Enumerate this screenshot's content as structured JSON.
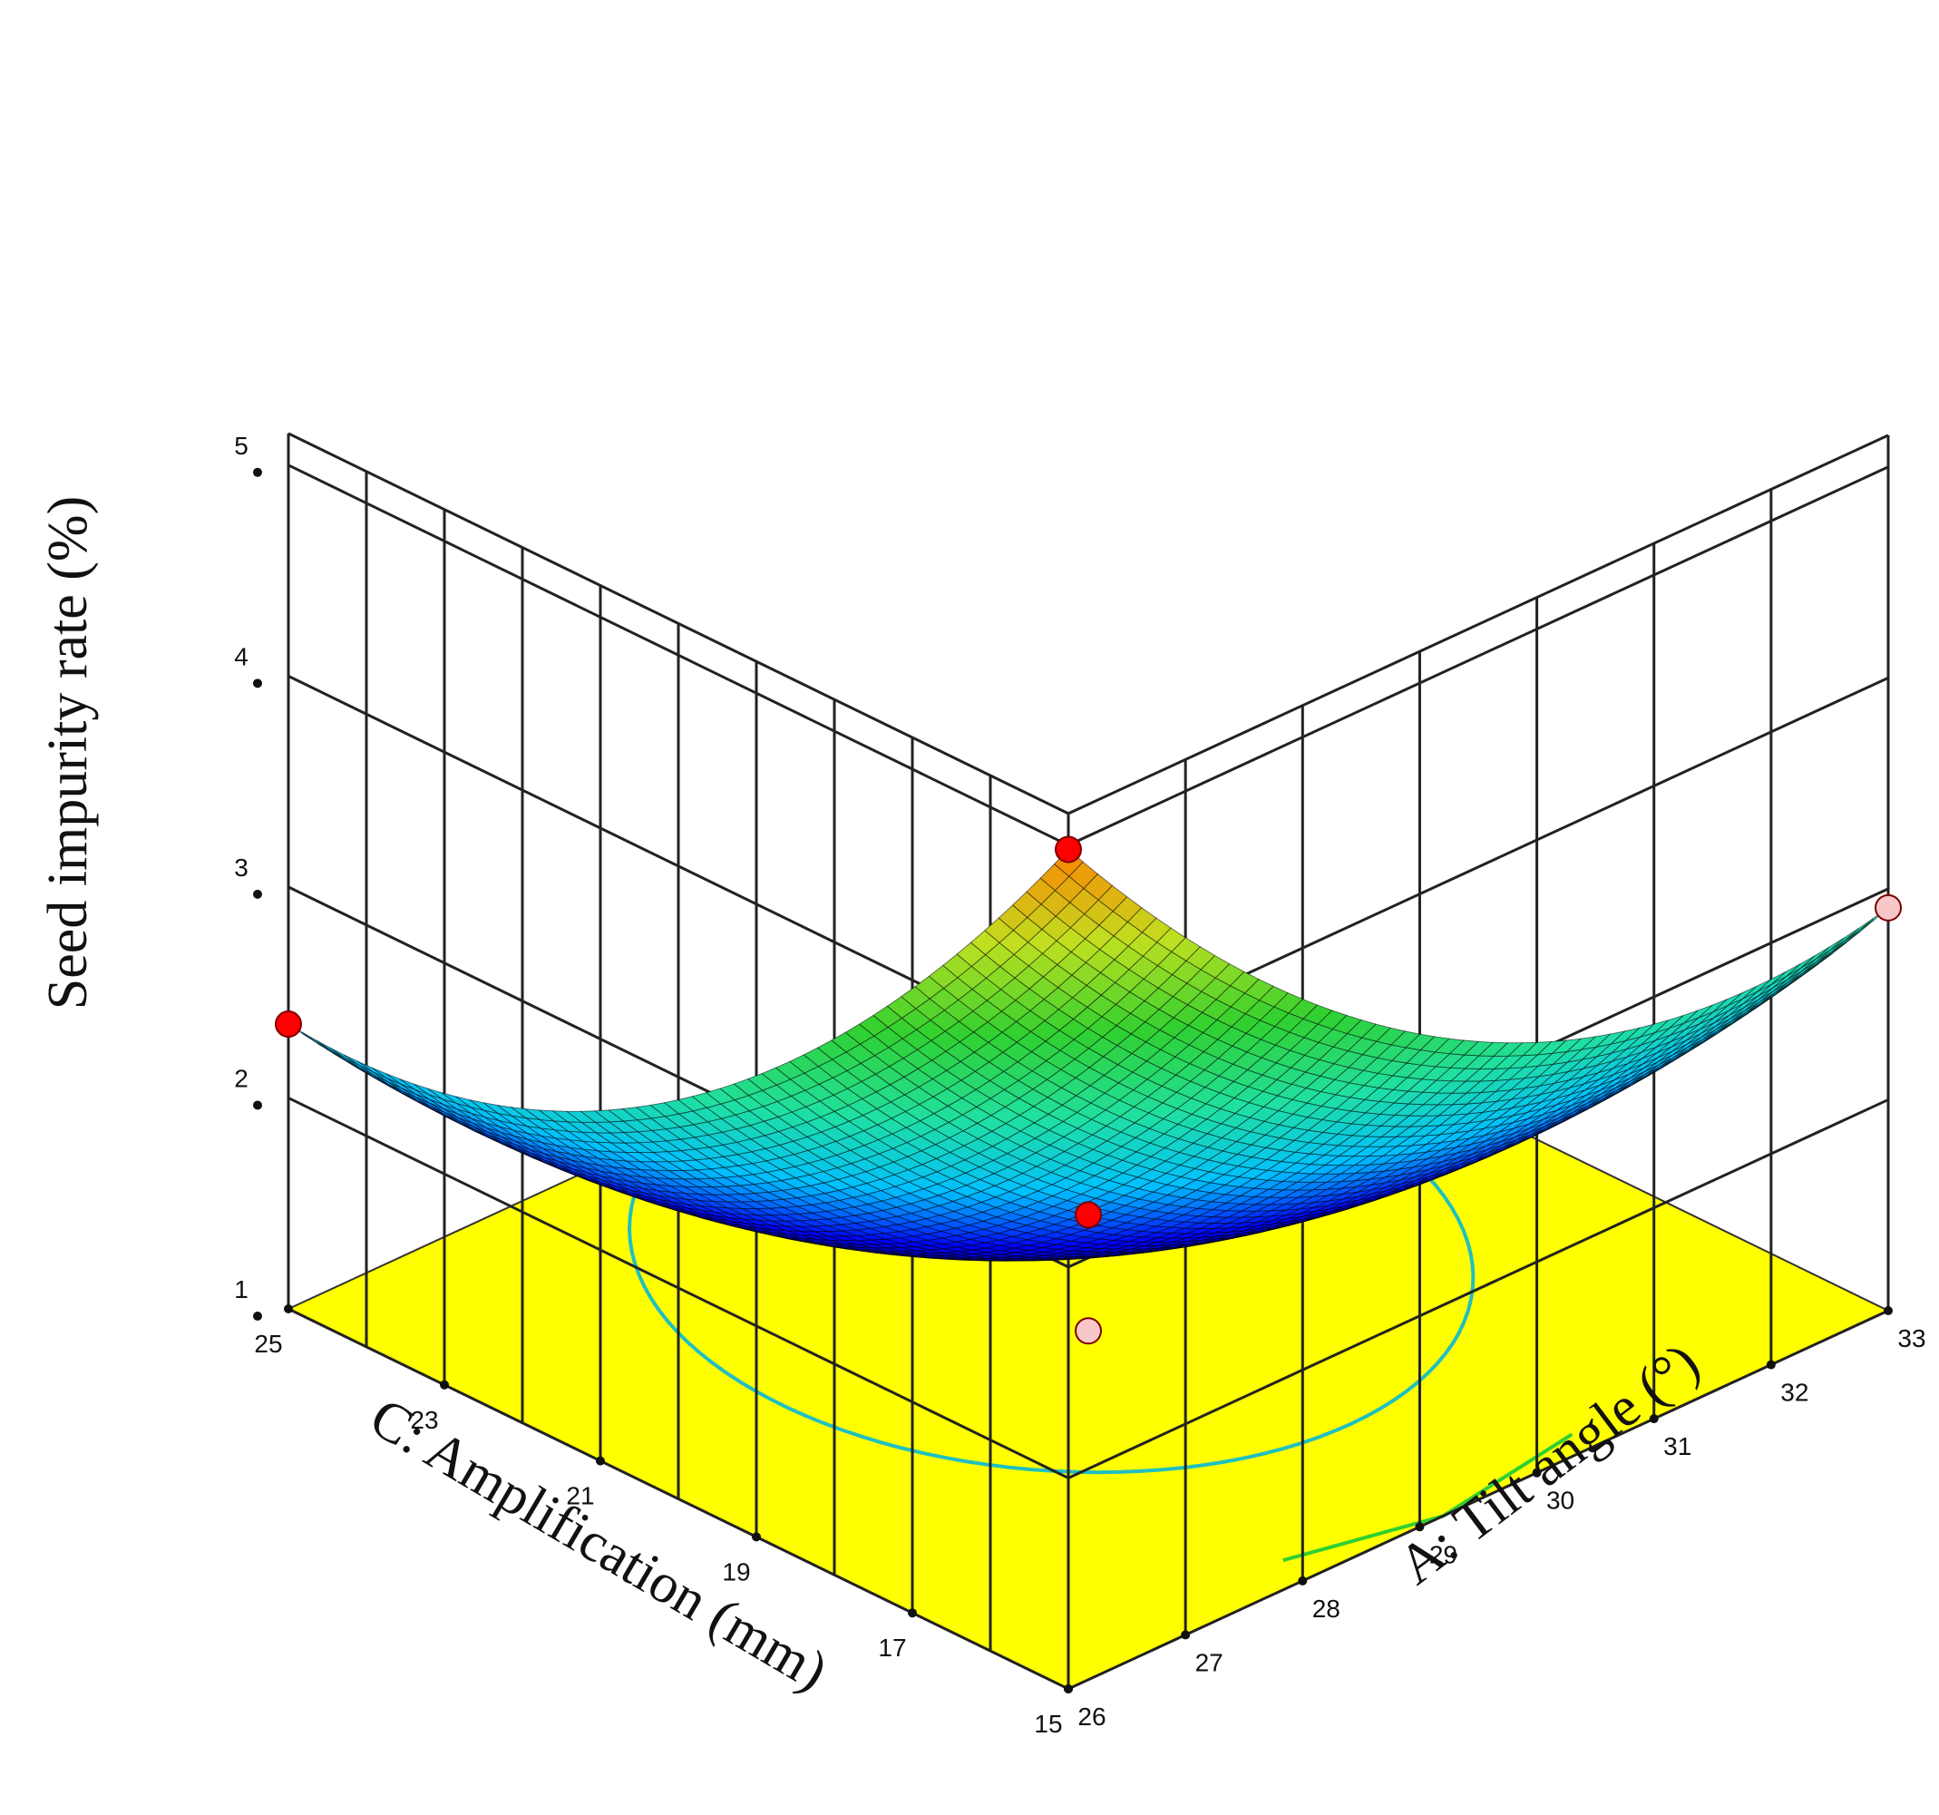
{
  "chart_data": {
    "type": "surface3d",
    "title": "",
    "zlabel": "Seed impurity rate (%)",
    "xlabel": "C: Amplification (mm)",
    "ylabel": "A: Tilt angle (°)",
    "zlim": [
      1,
      5
    ],
    "z_ticks": [
      "1",
      "2",
      "3",
      "4",
      "5"
    ],
    "c_ticks": [
      "25",
      "23",
      "21",
      "19",
      "17",
      "15"
    ],
    "a_ticks": [
      "26",
      "27",
      "28",
      "29",
      "30",
      "31",
      "32",
      "33"
    ],
    "c_range": [
      15,
      25
    ],
    "a_range": [
      26,
      33
    ],
    "surface_corners": [
      {
        "amplification": 15,
        "tilt_angle": 26,
        "impurity": 4.98
      },
      {
        "amplification": 25,
        "tilt_angle": 26,
        "impurity": 2.35
      },
      {
        "amplification": 15,
        "tilt_angle": 33,
        "impurity": 2.91
      },
      {
        "amplification": 25,
        "tilt_angle": 33,
        "impurity": 0.95
      }
    ],
    "surface_minimum": {
      "amplification": 21,
      "tilt_angle": 30,
      "impurity": 0.95
    },
    "design_points": [
      {
        "amplification": 15,
        "tilt_angle": 26,
        "impurity": 4.98,
        "marker": "above"
      },
      {
        "amplification": 25,
        "tilt_angle": 26,
        "impurity": 2.35,
        "marker": "above"
      },
      {
        "amplification": 15,
        "tilt_angle": 33,
        "impurity": 2.91,
        "marker": "below"
      },
      {
        "amplification": 20,
        "tilt_angle": 29.5,
        "impurity": 1.45,
        "marker": "above"
      },
      {
        "amplification": 20,
        "tilt_angle": 29.5,
        "impurity": 0.9,
        "marker": "below"
      }
    ],
    "colormap": [
      "#000060",
      "#0000ff",
      "#00c0ff",
      "#20e0a0",
      "#30d030",
      "#c0e020",
      "#ff8000"
    ],
    "floor_color": "#ffff00",
    "contour_color": "#20c0c0"
  }
}
